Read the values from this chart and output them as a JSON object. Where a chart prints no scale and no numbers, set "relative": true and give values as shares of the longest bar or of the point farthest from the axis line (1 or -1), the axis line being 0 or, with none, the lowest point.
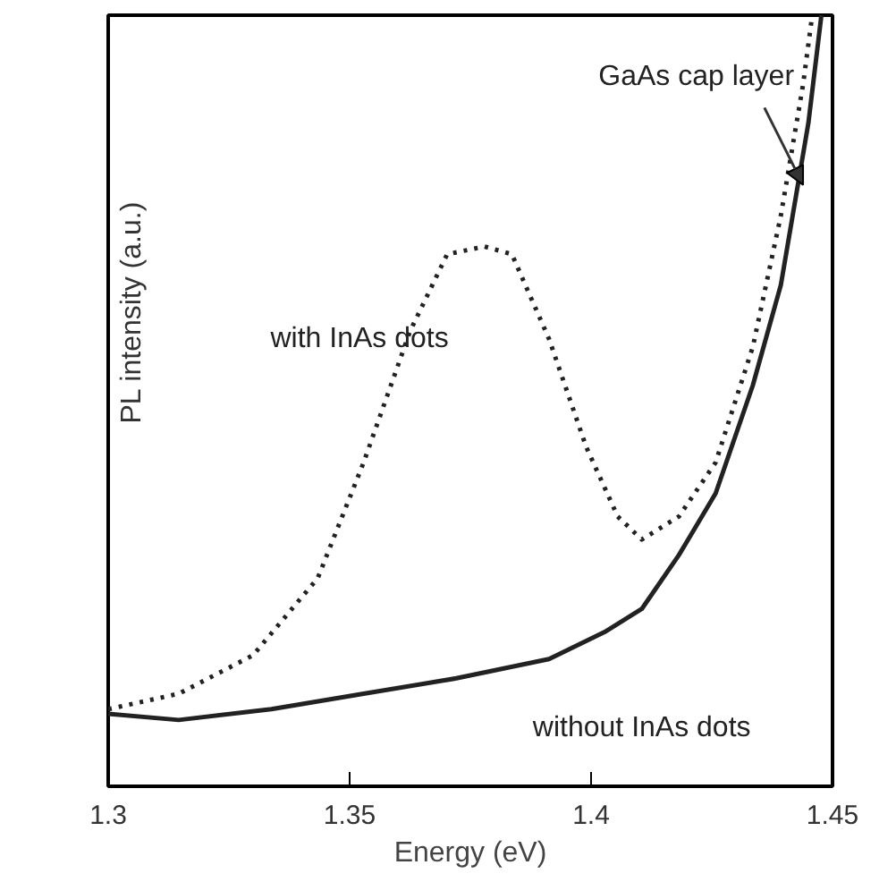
{
  "chart_data": {
    "type": "line",
    "relative": true,
    "xlabel": "Energy (eV)",
    "ylabel": "PL intensity (a.u.)",
    "xlim": [
      1.3,
      1.45
    ],
    "xticks": [
      1.3,
      1.35,
      1.4,
      1.45
    ],
    "tick_labels": "x",
    "grid": false,
    "annotations": [
      {
        "text": "GaAs cap layer",
        "x": 1.4439,
        "y": 0.78
      }
    ],
    "series": [
      {
        "name": "with InAs dots",
        "color": "#222222",
        "line_style": "dotted",
        "x": [
          1.3,
          1.3146,
          1.33,
          1.3434,
          1.3529,
          1.3625,
          1.3702,
          1.3779,
          1.3836,
          1.3913,
          1.399,
          1.4055,
          1.4105,
          1.4182,
          1.4258,
          1.4335,
          1.4393,
          1.4439,
          1.4458
        ],
        "values": [
          0.1,
          0.12,
          0.17,
          0.27,
          0.42,
          0.59,
          0.69,
          0.7,
          0.69,
          0.58,
          0.44,
          0.35,
          0.32,
          0.35,
          0.42,
          0.57,
          0.74,
          0.91,
          1.0
        ]
      },
      {
        "name": "without InAs dots",
        "color": "#222222",
        "line_style": "solid",
        "x": [
          1.3,
          1.3146,
          1.3338,
          1.3529,
          1.3721,
          1.3913,
          1.4028,
          1.4105,
          1.4182,
          1.4258,
          1.4335,
          1.4393,
          1.445,
          1.4477
        ],
        "values": [
          0.094,
          0.086,
          0.1,
          0.12,
          0.14,
          0.165,
          0.2,
          0.23,
          0.3,
          0.38,
          0.52,
          0.65,
          0.86,
          1.0
        ]
      }
    ]
  }
}
